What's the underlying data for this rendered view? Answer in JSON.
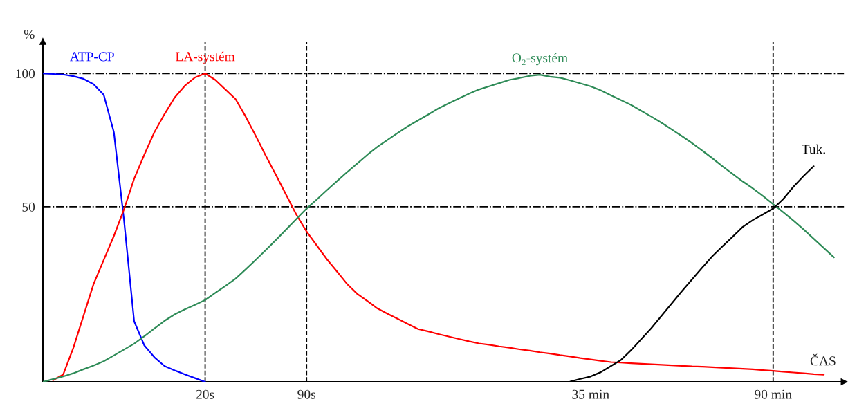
{
  "chart_data": {
    "type": "line",
    "xlabel": "ČAS",
    "ylabel": "%",
    "categories": [
      null,
      null,
      null,
      null,
      null,
      null,
      null,
      null,
      null,
      null,
      null,
      null,
      null,
      null,
      null,
      null,
      "20s",
      null,
      null,
      null,
      null,
      null,
      null,
      null,
      null,
      null,
      "90s",
      null,
      null,
      null,
      null,
      null,
      null,
      null,
      null,
      null,
      null,
      null,
      null,
      null,
      null,
      null,
      null,
      null,
      null,
      null,
      null,
      null,
      null,
      null,
      null,
      null,
      null,
      null,
      "35 min",
      null,
      null,
      null,
      null,
      null,
      null,
      null,
      null,
      null,
      null,
      null,
      null,
      null,
      null,
      null,
      null,
      null,
      "90 min",
      null,
      null,
      null,
      null,
      null,
      null,
      null
    ],
    "ylim": [
      -15.7,
      112
    ],
    "yticks": [
      50,
      100
    ],
    "grid": false,
    "legend": false,
    "marker": "none",
    "line_style": "solid",
    "ref_lines": [
      {
        "axis": "y",
        "value": 100,
        "line_style": "dashdot",
        "color": "#000000"
      },
      {
        "axis": "y",
        "value": 50,
        "line_style": "dashdot",
        "color": "#000000"
      },
      {
        "axis": "x",
        "value": "20s",
        "line_style": "dashed",
        "color": "#000000"
      },
      {
        "axis": "x",
        "value": "90s",
        "line_style": "dashed",
        "color": "#000000"
      },
      {
        "axis": "x",
        "value": "90 min",
        "line_style": "dashed",
        "color": "#000000"
      }
    ],
    "series": [
      {
        "name": "ATP-CP",
        "color": "#0000ff",
        "values": [
          100,
          99.8,
          99.6,
          99.0,
          98,
          96,
          92,
          78,
          45,
          7,
          -2,
          -6.5,
          -9.8,
          -11.4,
          -12.9,
          -14.3,
          -15.7,
          null,
          null,
          null,
          null,
          null,
          null,
          null,
          null,
          null,
          null,
          null,
          null,
          null,
          null,
          null,
          null,
          null,
          null,
          null,
          null,
          null,
          null,
          null,
          null,
          null,
          null,
          null,
          null,
          null,
          null,
          null,
          null,
          null,
          null,
          null,
          null,
          null,
          null,
          null,
          null,
          null,
          null,
          null,
          null,
          null,
          null,
          null,
          null,
          null,
          null,
          null,
          null,
          null,
          null,
          null,
          null,
          null,
          null,
          null,
          null,
          null,
          null,
          null
        ]
      },
      {
        "name": "LA-systém",
        "color": "#ff0000",
        "values": [
          null,
          -15.1,
          -13,
          -3,
          9,
          21,
          30,
          39,
          49,
          60.5,
          69.5,
          78,
          84.8,
          91,
          95.4,
          98.5,
          100,
          97.6,
          94,
          90.4,
          83.8,
          76.5,
          69,
          61.8,
          54.4,
          47,
          40.7,
          35.5,
          30.3,
          25.7,
          21,
          17.3,
          14.6,
          11.8,
          9.8,
          7.9,
          6,
          4.1,
          3.2,
          2.2,
          1.3,
          0.4,
          -0.5,
          -1.3,
          -1.8,
          -2.4,
          -2.9,
          -3.5,
          -4,
          -4.6,
          -5.1,
          -5.7,
          -6.2,
          -6.8,
          -7.3,
          -7.8,
          -8.3,
          -8.5,
          -8.7,
          -8.9,
          -9.1,
          -9.3,
          -9.5,
          -9.7,
          -9.9,
          -10,
          -10.2,
          -10.4,
          -10.6,
          -10.8,
          -11,
          -11.3,
          -11.6,
          -11.9,
          -12.2,
          -12.5,
          -12.8,
          -13,
          null,
          null
        ]
      },
      {
        "name": "O₂-systém",
        "color": "#2e8b57",
        "values": [
          -15.7,
          -14.7,
          -13.7,
          -12.5,
          -11,
          -9.6,
          -8,
          -5.8,
          -3.6,
          -1.4,
          1.4,
          4.3,
          7.2,
          9.6,
          11.5,
          13.2,
          15,
          17.7,
          20.3,
          23,
          26.5,
          30.1,
          33.8,
          37.6,
          41.5,
          45.4,
          49.3,
          52.7,
          56.2,
          59.6,
          63,
          66.2,
          69.5,
          72.5,
          75.1,
          77.7,
          80.2,
          82.4,
          84.6,
          86.9,
          88.8,
          90.6,
          92.4,
          94,
          95.2,
          96.4,
          97.6,
          98.3,
          99.1,
          99.5,
          98.8,
          98.4,
          97.4,
          96.3,
          95.2,
          93.7,
          91.8,
          90,
          88.2,
          86,
          83.8,
          81.5,
          79,
          76.5,
          73.9,
          71.1,
          68.2,
          65.2,
          62.3,
          59.5,
          56.9,
          54,
          51,
          47.9,
          44.8,
          41.5,
          38,
          34.5,
          31,
          null
        ]
      },
      {
        "name": "Tuk.",
        "color": "#000000",
        "values": [
          null,
          null,
          null,
          null,
          null,
          null,
          null,
          null,
          null,
          null,
          null,
          null,
          null,
          null,
          null,
          null,
          null,
          null,
          null,
          null,
          null,
          null,
          null,
          null,
          null,
          null,
          null,
          null,
          null,
          null,
          null,
          null,
          null,
          null,
          null,
          null,
          null,
          null,
          null,
          null,
          null,
          null,
          null,
          null,
          null,
          null,
          null,
          null,
          null,
          null,
          null,
          null,
          -15.6,
          -14.6,
          -13.7,
          -12.1,
          -9.8,
          -7.5,
          -3.8,
          0.3,
          4.5,
          9.1,
          13.7,
          18.3,
          22.7,
          27.1,
          31.4,
          35.1,
          38.7,
          42.4,
          45,
          47.1,
          49.3,
          52.9,
          57.5,
          61.5,
          65.2,
          null,
          null,
          null
        ]
      }
    ]
  }
}
